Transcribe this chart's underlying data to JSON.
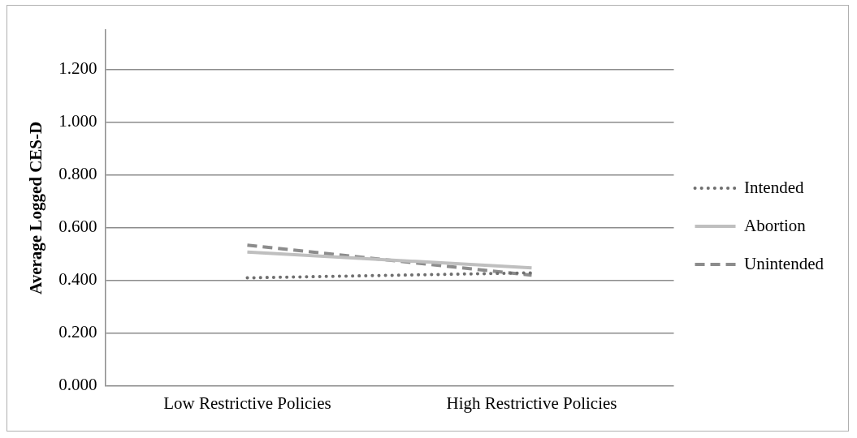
{
  "chart_data": {
    "type": "line",
    "ylabel": "Average Logged CES-D",
    "categories": [
      "Low Restrictive Policies",
      "High Restrictive Policies"
    ],
    "series": [
      {
        "name": "Intended",
        "color": "#6f6f6f",
        "line_style": "dotted",
        "values": [
          0.41,
          0.429
        ]
      },
      {
        "name": "Abortion",
        "color": "#bfbfbf",
        "line_style": "solid",
        "values": [
          0.508,
          0.448
        ]
      },
      {
        "name": "Unintended",
        "color": "#8c8c8c",
        "line_style": "dashed",
        "values": [
          0.534,
          0.42
        ]
      }
    ],
    "ylim": [
      0,
      1.35
    ],
    "yticks": [
      {
        "value": 0,
        "label": "0.000"
      },
      {
        "value": 0.2,
        "label": "0.200"
      },
      {
        "value": 0.4,
        "label": "0.400"
      },
      {
        "value": 0.6,
        "label": "0.600"
      },
      {
        "value": 0.8,
        "label": "0.800"
      },
      {
        "value": 1,
        "label": "1.000"
      },
      {
        "value": 1.2,
        "label": "1.200"
      }
    ],
    "grid": "y",
    "legend": "right",
    "marker": "none"
  }
}
